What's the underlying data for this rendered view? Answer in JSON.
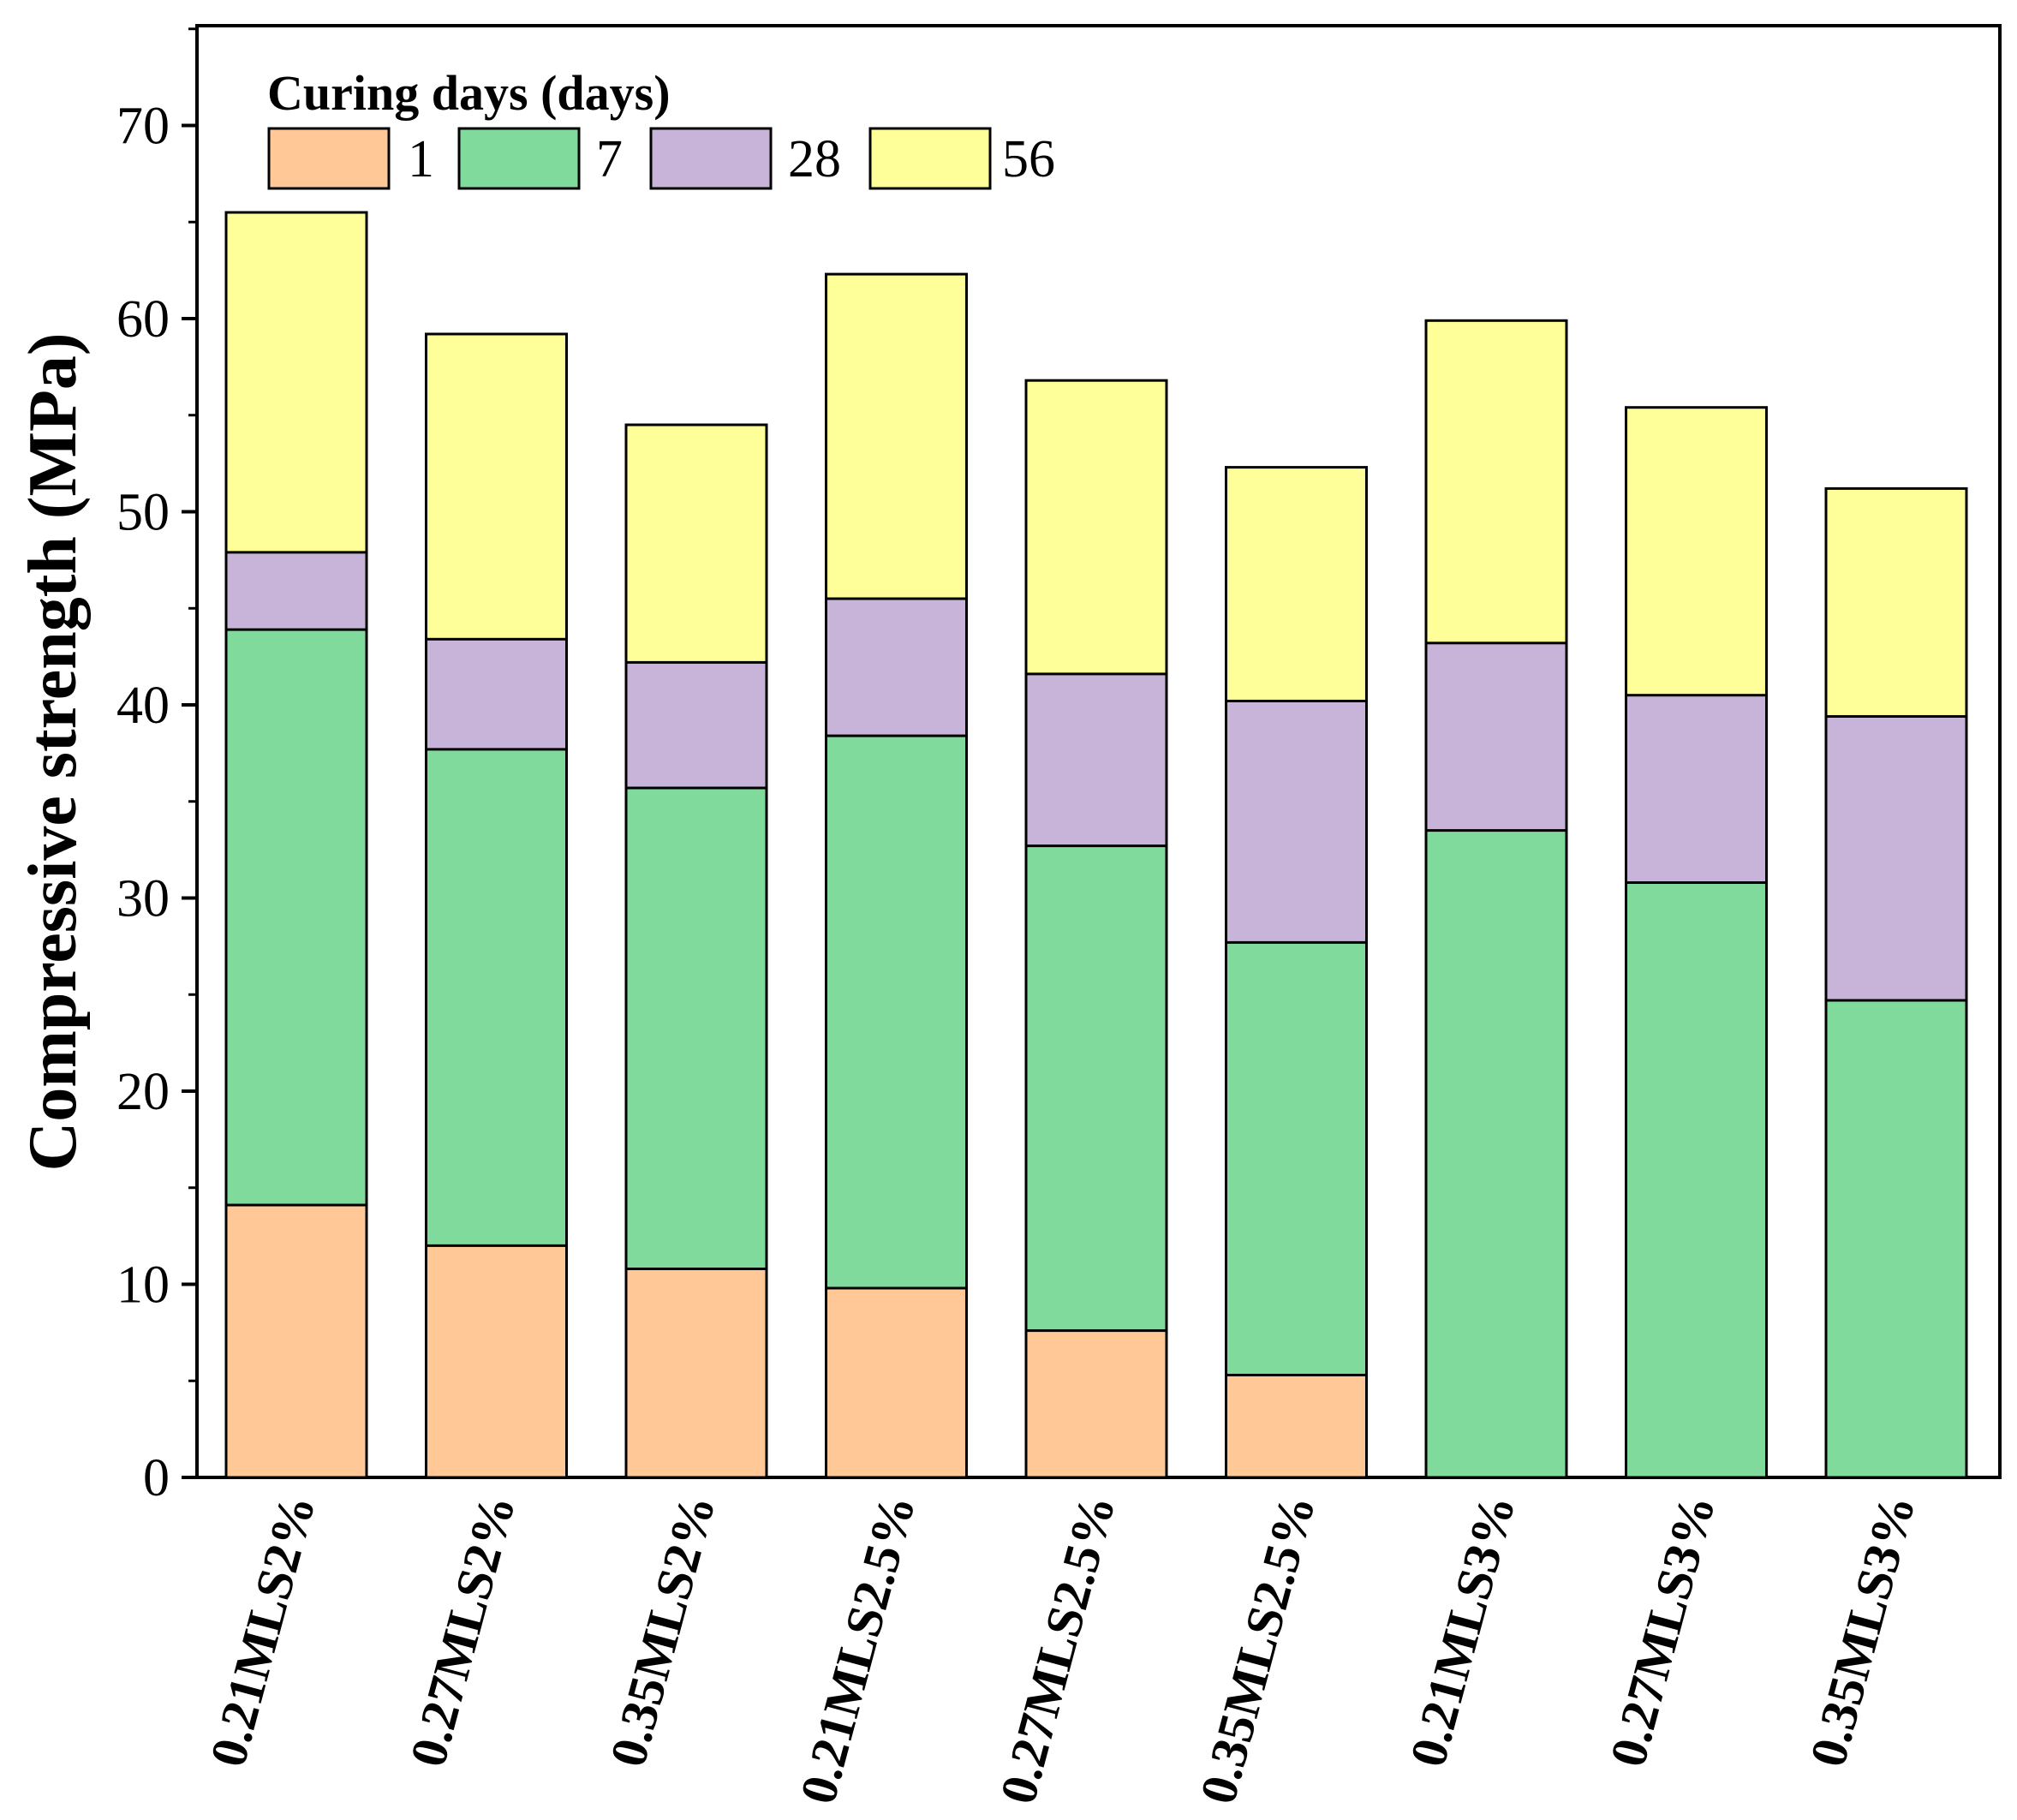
{
  "chart_data": {
    "type": "bar",
    "stacked": false,
    "overlapping": true,
    "title": "",
    "xlabel": "",
    "ylabel": "Compressive strength (MPa)",
    "ylim": [
      0,
      75
    ],
    "yticks": [
      0,
      10,
      20,
      30,
      40,
      50,
      60,
      70
    ],
    "legend_title": "Curing days (days)",
    "legend_position": "top-left",
    "categories": [
      "0.21MLS2%",
      "0.27MLS2%",
      "0.35MLS2%",
      "0.21MLS2.5%",
      "0.27MLS2.5%",
      "0.35MLS2.5%",
      "0.21MLS3%",
      "0.27MLS3%",
      "0.35MLS3%"
    ],
    "series": [
      {
        "name": "56",
        "color": "#FFFF99",
        "values": [
          65.5,
          59.2,
          54.5,
          62.3,
          56.8,
          52.3,
          59.9,
          55.4,
          51.2
        ]
      },
      {
        "name": "28",
        "color": "#C8B4D8",
        "values": [
          47.9,
          43.4,
          42.2,
          45.5,
          41.6,
          40.2,
          43.2,
          40.5,
          39.4
        ]
      },
      {
        "name": "7",
        "color": "#80DA9C",
        "values": [
          43.9,
          37.7,
          35.7,
          38.4,
          32.7,
          27.7,
          33.5,
          30.8,
          24.7
        ]
      },
      {
        "name": "1",
        "color": "#FFC896",
        "values": [
          14.1,
          12.0,
          10.8,
          9.8,
          7.6,
          5.3,
          0,
          0,
          0
        ]
      }
    ],
    "legend_order": [
      "1",
      "7",
      "28",
      "56"
    ]
  }
}
